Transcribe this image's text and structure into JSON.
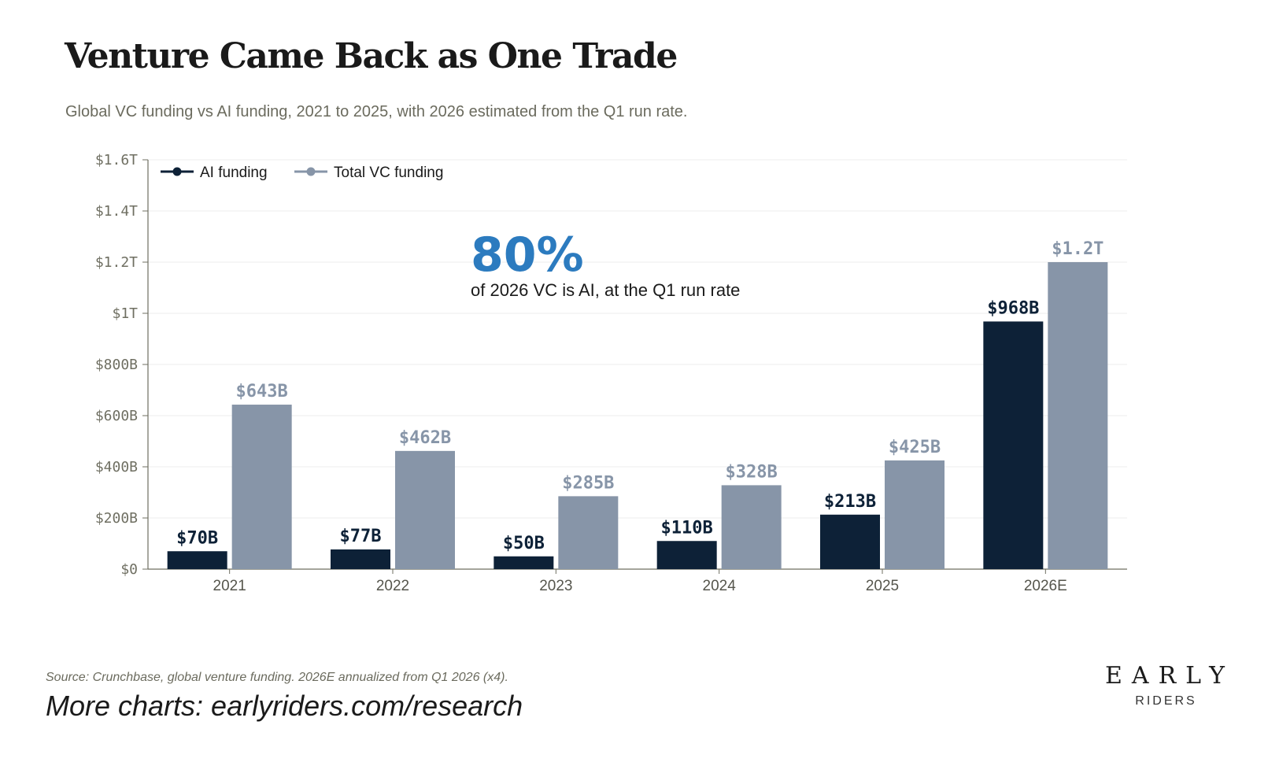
{
  "header": {
    "title": "Venture Came Back as One Trade",
    "subtitle": "Global VC funding vs AI funding, 2021 to 2025, with 2026 estimated from the Q1 run rate."
  },
  "chart_data": {
    "type": "bar",
    "categories": [
      "2021",
      "2022",
      "2023",
      "2024",
      "2025",
      "2026E"
    ],
    "series": [
      {
        "name": "AI funding",
        "color": "#0d2137",
        "values": [
          70,
          77,
          50,
          110,
          213,
          968
        ],
        "labels": [
          "$70B",
          "$77B",
          "$50B",
          "$110B",
          "$213B",
          "$968B"
        ]
      },
      {
        "name": "Total VC funding",
        "color": "#8795a8",
        "values": [
          643,
          462,
          285,
          328,
          425,
          1200
        ],
        "labels": [
          "$643B",
          "$462B",
          "$285B",
          "$328B",
          "$425B",
          "$1.2T"
        ]
      }
    ],
    "y_unit": "billions USD",
    "ylim": [
      0,
      1600
    ],
    "yticks": [
      0,
      200,
      400,
      600,
      800,
      1000,
      1200,
      1400,
      1600
    ],
    "ytick_labels": [
      "$0",
      "$200B",
      "$400B",
      "$600B",
      "$800B",
      "$1T",
      "$1.2T",
      "$1.4T",
      "$1.6T"
    ],
    "grid": true,
    "legend": "top-left",
    "annotation": {
      "big": "80%",
      "text": "of 2026 VC is AI, at the Q1 run rate"
    }
  },
  "footer": {
    "source": "Source: Crunchbase, global venture funding. 2026E annualized from Q1 2026 (x4).",
    "more": "More charts: earlyriders.com/research",
    "logo_top": "EARLY",
    "logo_bottom": "RIDERS"
  },
  "colors": {
    "callout": "#2c7bbf",
    "grid": "#eeeeee",
    "axis": "#6f6f62"
  }
}
